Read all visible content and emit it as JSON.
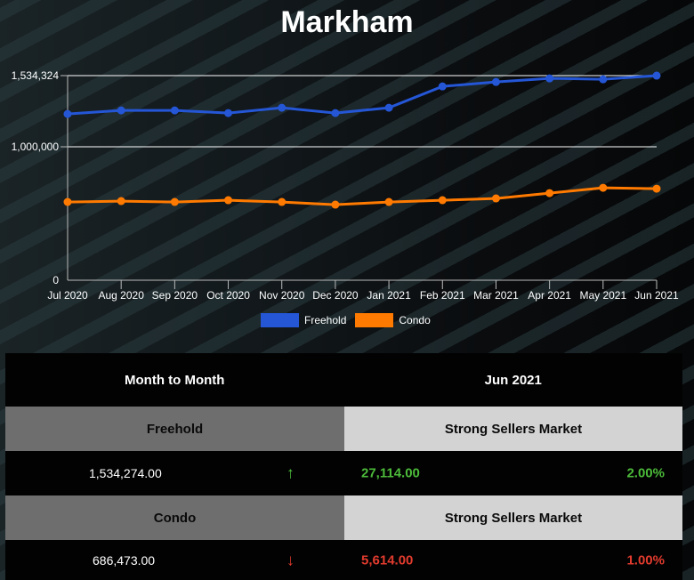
{
  "title": "Markham",
  "chart_data": {
    "type": "line",
    "title": "Markham",
    "xlabel": "",
    "ylabel": "",
    "ylim": [
      0,
      1534324
    ],
    "yticks": [
      "0",
      "1,000,000",
      "1,534,324"
    ],
    "grid": true,
    "legend_position": "bottom",
    "categories": [
      "Jul 2020",
      "Aug 2020",
      "Sep 2020",
      "Oct 2020",
      "Nov 2020",
      "Dec 2020",
      "Jan 2021",
      "Feb 2021",
      "Mar 2021",
      "Apr 2021",
      "May 2021",
      "Jun 2021"
    ],
    "series": [
      {
        "name": "Freehold",
        "color": "#2456d6",
        "values": [
          1246667,
          1273333,
          1273333,
          1253333,
          1293333,
          1253333,
          1293333,
          1453333,
          1486667,
          1513333,
          1506667,
          1534274
        ]
      },
      {
        "name": "Condo",
        "color": "#ff7a00",
        "values": [
          586667,
          593333,
          586667,
          600000,
          586667,
          566667,
          586667,
          600000,
          613333,
          653333,
          693333,
          686473
        ]
      }
    ]
  },
  "legend": [
    {
      "label": "Freehold",
      "color": "#2456d6"
    },
    {
      "label": "Condo",
      "color": "#ff7a00"
    }
  ],
  "table": {
    "header_left": "Month to Month",
    "header_right": "Jun 2021",
    "rows": [
      {
        "type": "Freehold",
        "market": "Strong Sellers Market",
        "price": "1,534,274.00",
        "direction": "up",
        "arrow": "↑",
        "change": "27,114.00",
        "pct": "2.00%"
      },
      {
        "type": "Condo",
        "market": "Strong Sellers Market",
        "price": "686,473.00",
        "direction": "down",
        "arrow": "↓",
        "change": "5,614.00",
        "pct": "1.00%"
      }
    ]
  },
  "colors": {
    "up": "#4cbb3a",
    "down": "#e23b2e",
    "freehold": "#2456d6",
    "condo": "#ff7a00"
  }
}
